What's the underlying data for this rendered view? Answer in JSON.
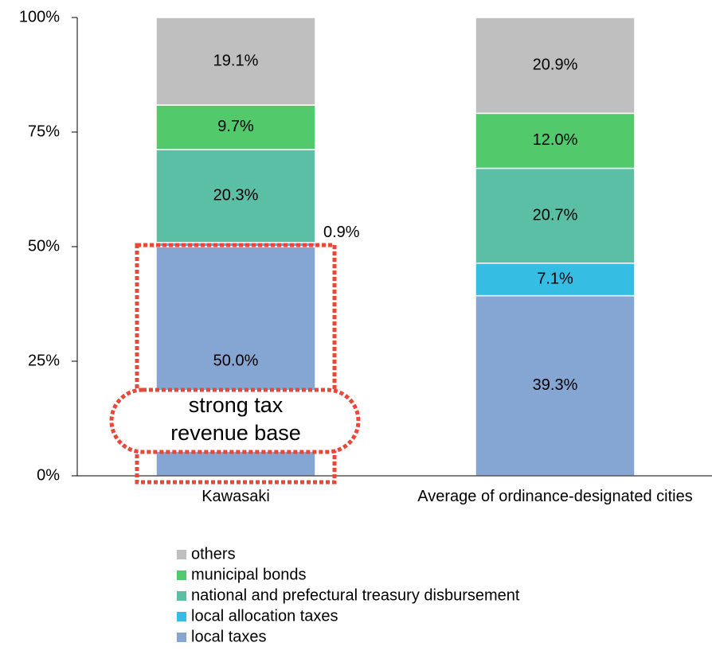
{
  "chart_data": {
    "type": "stacked_bar",
    "categories": [
      "Kawasaki",
      "Average of ordinance-designated cities"
    ],
    "series": [
      {
        "name": "local taxes",
        "color": "#85a5d2",
        "values": [
          50.0,
          39.3
        ],
        "value_labels": [
          "50.0%",
          "39.3%"
        ]
      },
      {
        "name": "local allocation taxes",
        "color": "#36bde3",
        "values": [
          0.9,
          7.1
        ],
        "value_labels": [
          "0.9%",
          "7.1%"
        ]
      },
      {
        "name": "national and prefectural treasury disbursement",
        "color": "#5bbfa5",
        "values": [
          20.3,
          20.7
        ],
        "value_labels": [
          "20.3%",
          "20.7%"
        ]
      },
      {
        "name": "municipal bonds",
        "color": "#52c96a",
        "values": [
          9.7,
          12.0
        ],
        "value_labels": [
          "9.7%",
          "12.0%"
        ]
      },
      {
        "name": "others",
        "color": "#bfbfbf",
        "values": [
          19.1,
          20.9
        ],
        "value_labels": [
          "19.1%",
          "20.9%"
        ]
      }
    ],
    "ylim": [
      0,
      100
    ],
    "yticks": [
      {
        "value": 0,
        "label": "0%"
      },
      {
        "value": 25,
        "label": "25%"
      },
      {
        "value": 50,
        "label": "50%"
      },
      {
        "value": 75,
        "label": "75%"
      },
      {
        "value": 100,
        "label": "100%"
      }
    ],
    "annotation": [
      "strong tax",
      "revenue base"
    ]
  }
}
